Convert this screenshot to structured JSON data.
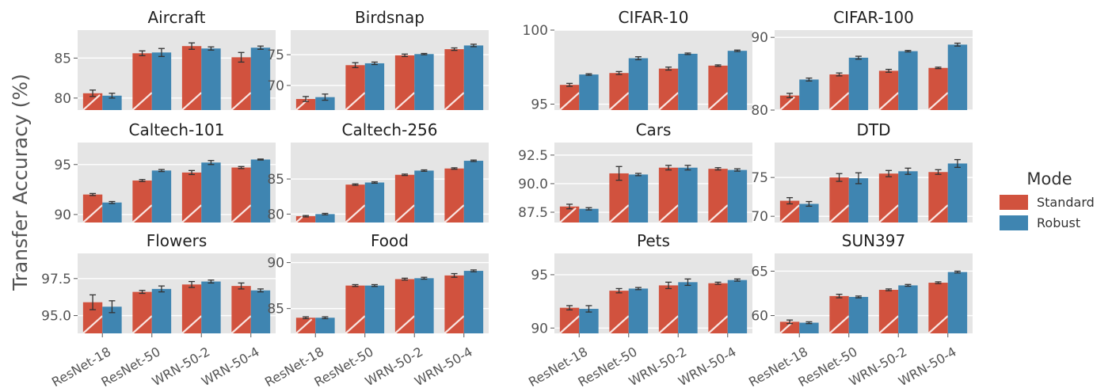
{
  "figure": {
    "ylabel": "Transfer Accuracy (%)",
    "legend": {
      "title": "Mode",
      "placement": "right",
      "entries": [
        {
          "label": "Standard",
          "color": "#d1523e"
        },
        {
          "label": "Robust",
          "color": "#3f85b1"
        }
      ]
    }
  },
  "chart_data": [
    {
      "type": "bar",
      "title": "Aircraft",
      "categories": [
        "ResNet-18",
        "ResNet-50",
        "WRN-50-2",
        "WRN-50-4"
      ],
      "ylim": [
        78.5,
        88.5
      ],
      "yticks": [
        80,
        85
      ],
      "ytick_labels": [
        "80",
        "85"
      ],
      "series": [
        {
          "name": "Standard",
          "values": [
            80.6,
            85.6,
            86.5,
            85.1
          ],
          "errors": [
            0.4,
            0.3,
            0.4,
            0.6
          ]
        },
        {
          "name": "Robust",
          "values": [
            80.3,
            85.7,
            86.2,
            86.3
          ],
          "errors": [
            0.3,
            0.5,
            0.2,
            0.2
          ]
        }
      ]
    },
    {
      "type": "bar",
      "title": "Birdsnap",
      "categories": [
        "ResNet-18",
        "ResNet-50",
        "WRN-50-2",
        "WRN-50-4"
      ],
      "ylim": [
        66,
        79
      ],
      "yticks": [
        70,
        75
      ],
      "ytick_labels": [
        "70",
        "75"
      ],
      "series": [
        {
          "name": "Standard",
          "values": [
            67.8,
            73.3,
            74.9,
            75.9
          ],
          "errors": [
            0.4,
            0.4,
            0.2,
            0.2
          ]
        },
        {
          "name": "Robust",
          "values": [
            68.1,
            73.6,
            75.1,
            76.5
          ],
          "errors": [
            0.5,
            0.2,
            0.1,
            0.2
          ]
        }
      ]
    },
    {
      "type": "bar",
      "title": "CIFAR-10",
      "categories": [
        "ResNet-18",
        "ResNet-50",
        "WRN-50-2",
        "WRN-50-4"
      ],
      "ylim": [
        94.6,
        100
      ],
      "yticks": [
        95,
        100
      ],
      "ytick_labels": [
        "95",
        "100"
      ],
      "series": [
        {
          "name": "Standard",
          "values": [
            96.3,
            97.1,
            97.4,
            97.6
          ],
          "errors": [
            0.1,
            0.1,
            0.1,
            0.05
          ]
        },
        {
          "name": "Robust",
          "values": [
            97.0,
            98.1,
            98.4,
            98.6
          ],
          "errors": [
            0.05,
            0.1,
            0.05,
            0.05
          ]
        }
      ]
    },
    {
      "type": "bar",
      "title": "CIFAR-100",
      "categories": [
        "ResNet-18",
        "ResNet-50",
        "WRN-50-2",
        "WRN-50-4"
      ],
      "ylim": [
        80,
        91
      ],
      "yticks": [
        80,
        90
      ],
      "ytick_labels": [
        "80",
        "90"
      ],
      "series": [
        {
          "name": "Standard",
          "values": [
            82.0,
            84.9,
            85.4,
            85.8
          ],
          "errors": [
            0.3,
            0.2,
            0.2,
            0.1
          ]
        },
        {
          "name": "Robust",
          "values": [
            84.2,
            87.2,
            88.1,
            89.0
          ],
          "errors": [
            0.2,
            0.2,
            0.1,
            0.2
          ]
        }
      ]
    },
    {
      "type": "bar",
      "title": "Caltech-101",
      "categories": [
        "ResNet-18",
        "ResNet-50",
        "WRN-50-2",
        "WRN-50-4"
      ],
      "ylim": [
        89.2,
        97.2
      ],
      "yticks": [
        90,
        95
      ],
      "ytick_labels": [
        "90",
        "95"
      ],
      "series": [
        {
          "name": "Standard",
          "values": [
            92.0,
            93.4,
            94.2,
            94.7
          ],
          "errors": [
            0.1,
            0.1,
            0.2,
            0.1
          ]
        },
        {
          "name": "Robust",
          "values": [
            91.2,
            94.4,
            95.2,
            95.5
          ],
          "errors": [
            0.1,
            0.1,
            0.2,
            0.05
          ]
        }
      ]
    },
    {
      "type": "bar",
      "title": "Caltech-256",
      "categories": [
        "ResNet-18",
        "ResNet-50",
        "WRN-50-2",
        "WRN-50-4"
      ],
      "ylim": [
        78.8,
        90.2
      ],
      "yticks": [
        80,
        85
      ],
      "ytick_labels": [
        "80",
        "85"
      ],
      "series": [
        {
          "name": "Standard",
          "values": [
            79.7,
            84.2,
            85.6,
            86.5
          ],
          "errors": [
            0.1,
            0.1,
            0.1,
            0.1
          ]
        },
        {
          "name": "Robust",
          "values": [
            80.0,
            84.5,
            86.2,
            87.6
          ],
          "errors": [
            0.1,
            0.1,
            0.1,
            0.1
          ]
        }
      ]
    },
    {
      "type": "bar",
      "title": "Cars",
      "categories": [
        "ResNet-18",
        "ResNet-50",
        "WRN-50-2",
        "WRN-50-4"
      ],
      "ylim": [
        86.6,
        93.6
      ],
      "yticks": [
        87.5,
        90.0,
        92.5
      ],
      "ytick_labels": [
        "87.5",
        "90.0",
        "92.5"
      ],
      "series": [
        {
          "name": "Standard",
          "values": [
            88.0,
            90.9,
            91.4,
            91.3
          ],
          "errors": [
            0.2,
            0.6,
            0.2,
            0.1
          ]
        },
        {
          "name": "Robust",
          "values": [
            87.8,
            90.8,
            91.4,
            91.2
          ],
          "errors": [
            0.1,
            0.1,
            0.2,
            0.1
          ]
        }
      ]
    },
    {
      "type": "bar",
      "title": "DTD",
      "categories": [
        "ResNet-18",
        "ResNet-50",
        "WRN-50-2",
        "WRN-50-4"
      ],
      "ylim": [
        69.2,
        79.5
      ],
      "yticks": [
        70,
        75
      ],
      "ytick_labels": [
        "70",
        "75"
      ],
      "series": [
        {
          "name": "Standard",
          "values": [
            72.0,
            75.0,
            75.5,
            75.7
          ],
          "errors": [
            0.4,
            0.5,
            0.4,
            0.3
          ]
        },
        {
          "name": "Robust",
          "values": [
            71.6,
            74.9,
            75.8,
            76.8
          ],
          "errors": [
            0.3,
            0.7,
            0.4,
            0.5
          ]
        }
      ]
    },
    {
      "type": "bar",
      "title": "Flowers",
      "categories": [
        "ResNet-18",
        "ResNet-50",
        "WRN-50-2",
        "WRN-50-4"
      ],
      "ylim": [
        93.8,
        99.2
      ],
      "yticks": [
        95.0,
        97.5
      ],
      "ytick_labels": [
        "95.0",
        "97.5"
      ],
      "series": [
        {
          "name": "Standard",
          "values": [
            95.9,
            96.6,
            97.1,
            97.0
          ],
          "errors": [
            0.5,
            0.1,
            0.2,
            0.2
          ]
        },
        {
          "name": "Robust",
          "values": [
            95.6,
            96.8,
            97.3,
            96.7
          ],
          "errors": [
            0.4,
            0.2,
            0.1,
            0.1
          ]
        }
      ]
    },
    {
      "type": "bar",
      "title": "Food",
      "categories": [
        "ResNet-18",
        "ResNet-50",
        "WRN-50-2",
        "WRN-50-4"
      ],
      "ylim": [
        82.3,
        91
      ],
      "yticks": [
        85,
        90
      ],
      "ytick_labels": [
        "85",
        "90"
      ],
      "series": [
        {
          "name": "Standard",
          "values": [
            84.0,
            87.5,
            88.2,
            88.6
          ],
          "errors": [
            0.1,
            0.1,
            0.1,
            0.2
          ]
        },
        {
          "name": "Robust",
          "values": [
            84.0,
            87.5,
            88.3,
            89.1
          ],
          "errors": [
            0.1,
            0.1,
            0.1,
            0.1
          ]
        }
      ]
    },
    {
      "type": "bar",
      "title": "Pets",
      "categories": [
        "ResNet-18",
        "ResNet-50",
        "WRN-50-2",
        "WRN-50-4"
      ],
      "ylim": [
        89.5,
        97
      ],
      "yticks": [
        90,
        95
      ],
      "ytick_labels": [
        "90",
        "95"
      ],
      "series": [
        {
          "name": "Standard",
          "values": [
            91.9,
            93.5,
            94.0,
            94.2
          ],
          "errors": [
            0.2,
            0.2,
            0.3,
            0.1
          ]
        },
        {
          "name": "Robust",
          "values": [
            91.8,
            93.7,
            94.3,
            94.5
          ],
          "errors": [
            0.3,
            0.1,
            0.3,
            0.1
          ]
        }
      ]
    },
    {
      "type": "bar",
      "title": "SUN397",
      "categories": [
        "ResNet-18",
        "ResNet-50",
        "WRN-50-2",
        "WRN-50-4"
      ],
      "ylim": [
        58,
        67
      ],
      "yticks": [
        60,
        65
      ],
      "ytick_labels": [
        "60",
        "65"
      ],
      "series": [
        {
          "name": "Standard",
          "values": [
            59.3,
            62.2,
            62.9,
            63.7
          ],
          "errors": [
            0.2,
            0.2,
            0.1,
            0.1
          ]
        },
        {
          "name": "Robust",
          "values": [
            59.2,
            62.1,
            63.4,
            64.9
          ],
          "errors": [
            0.1,
            0.1,
            0.1,
            0.1
          ]
        }
      ]
    }
  ]
}
